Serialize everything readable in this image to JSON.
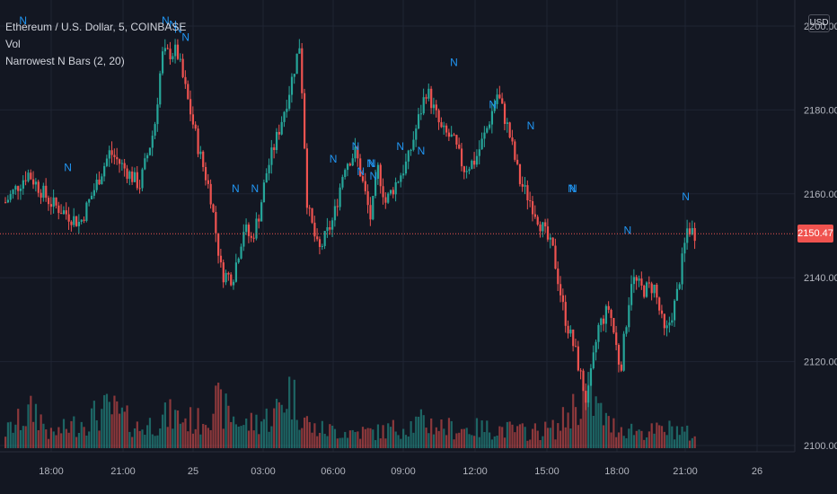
{
  "legend": {
    "symbol": "Ethereum / U.S. Dollar, 5, COINBASE",
    "volume": "Vol",
    "indicator": "Narrowest N Bars (2, 20)"
  },
  "currency_button": "USD",
  "last_price": "2150.47",
  "marker_glyph": "N",
  "colors": {
    "background": "#131722",
    "up": "#26a69a",
    "down": "#ef5350",
    "grid": "#1f2433",
    "text": "#b2b5be",
    "marker": "#2196f3",
    "price_line": "#ef5350"
  },
  "chart_data": {
    "type": "candlestick",
    "x_tick_labels": [
      "18:00",
      "21:00",
      "25",
      "03:00",
      "06:00",
      "09:00",
      "12:00",
      "15:00",
      "18:00",
      "21:00",
      "26"
    ],
    "y_tick_labels": [
      "2200.00",
      "2180.00",
      "2160.00",
      "2140.00",
      "2120.00",
      "2100.00"
    ],
    "ylim": [
      2100,
      2203
    ],
    "last_price": 2150.47,
    "close_path": [
      [
        0,
        2158
      ],
      [
        3,
        2165
      ],
      [
        6,
        2158
      ],
      [
        10,
        2153
      ],
      [
        14,
        2170
      ],
      [
        18,
        2162
      ],
      [
        20,
        2176
      ],
      [
        21,
        2193
      ],
      [
        23,
        2194
      ],
      [
        24.5,
        2182
      ],
      [
        26,
        2170
      ],
      [
        27.5,
        2160
      ],
      [
        29,
        2141
      ],
      [
        30.5,
        2140
      ],
      [
        32,
        2152
      ],
      [
        33,
        2149
      ],
      [
        34,
        2155
      ],
      [
        35,
        2165
      ],
      [
        36.5,
        2174
      ],
      [
        38,
        2184
      ],
      [
        39.5,
        2196
      ],
      [
        40.5,
        2157
      ],
      [
        42,
        2146
      ],
      [
        44,
        2154
      ],
      [
        45.5,
        2167
      ],
      [
        47,
        2170
      ],
      [
        49,
        2154
      ],
      [
        50,
        2166
      ],
      [
        51,
        2158
      ],
      [
        52.5,
        2163
      ],
      [
        54,
        2168
      ],
      [
        55,
        2175
      ],
      [
        56.5,
        2185
      ],
      [
        58.5,
        2175
      ],
      [
        60,
        2173
      ],
      [
        61.5,
        2166
      ],
      [
        63,
        2168
      ],
      [
        64.5,
        2175
      ],
      [
        66,
        2184
      ],
      [
        67.5,
        2175
      ],
      [
        69,
        2163
      ],
      [
        70.5,
        2158
      ],
      [
        72,
        2152
      ],
      [
        73.5,
        2146
      ],
      [
        75,
        2131
      ],
      [
        76.5,
        2122
      ],
      [
        78,
        2110
      ],
      [
        79.5,
        2128
      ],
      [
        81,
        2133
      ],
      [
        82.5,
        2118
      ],
      [
        84,
        2140
      ],
      [
        85.5,
        2137
      ],
      [
        87,
        2138
      ],
      [
        88.5,
        2126
      ],
      [
        90,
        2135
      ],
      [
        91.5,
        2152
      ],
      [
        92.5,
        2150.5
      ]
    ],
    "n_markers": [
      {
        "x": 2.5,
        "price": 2200
      },
      {
        "x": 21.6,
        "price": 2200
      },
      {
        "x": 22.6,
        "price": 2199
      },
      {
        "x": 23.3,
        "price": 2198
      },
      {
        "x": 24.3,
        "price": 2196
      },
      {
        "x": 8.5,
        "price": 2165
      },
      {
        "x": 31,
        "price": 2160
      },
      {
        "x": 33.6,
        "price": 2160
      },
      {
        "x": 44.1,
        "price": 2167
      },
      {
        "x": 47.1,
        "price": 2170
      },
      {
        "x": 49.1,
        "price": 2166
      },
      {
        "x": 49.3,
        "price": 2166
      },
      {
        "x": 47.8,
        "price": 2164
      },
      {
        "x": 49.5,
        "price": 2163
      },
      {
        "x": 53.1,
        "price": 2170
      },
      {
        "x": 55.9,
        "price": 2169
      },
      {
        "x": 60.3,
        "price": 2190
      },
      {
        "x": 65.5,
        "price": 2180
      },
      {
        "x": 70.6,
        "price": 2175
      },
      {
        "x": 76.1,
        "price": 2160
      },
      {
        "x": 76.3,
        "price": 2160
      },
      {
        "x": 83.6,
        "price": 2150
      },
      {
        "x": 91.4,
        "price": 2158
      }
    ],
    "volume_profile": [
      [
        0,
        0.25
      ],
      [
        4,
        0.6
      ],
      [
        6,
        0.2
      ],
      [
        10,
        0.4
      ],
      [
        14,
        0.6
      ],
      [
        18,
        0.3
      ],
      [
        22,
        0.5
      ],
      [
        26,
        0.4
      ],
      [
        28,
        0.7
      ],
      [
        32,
        0.35
      ],
      [
        36,
        0.5
      ],
      [
        38,
        0.9
      ],
      [
        41,
        0.3
      ],
      [
        46,
        0.25
      ],
      [
        50,
        0.25
      ],
      [
        56,
        0.4
      ],
      [
        60,
        0.3
      ],
      [
        66,
        0.3
      ],
      [
        70,
        0.25
      ],
      [
        74,
        0.3
      ],
      [
        76,
        0.6
      ],
      [
        78,
        0.85
      ],
      [
        81,
        0.35
      ],
      [
        86,
        0.25
      ],
      [
        90,
        0.3
      ],
      [
        92,
        0.2
      ]
    ]
  }
}
